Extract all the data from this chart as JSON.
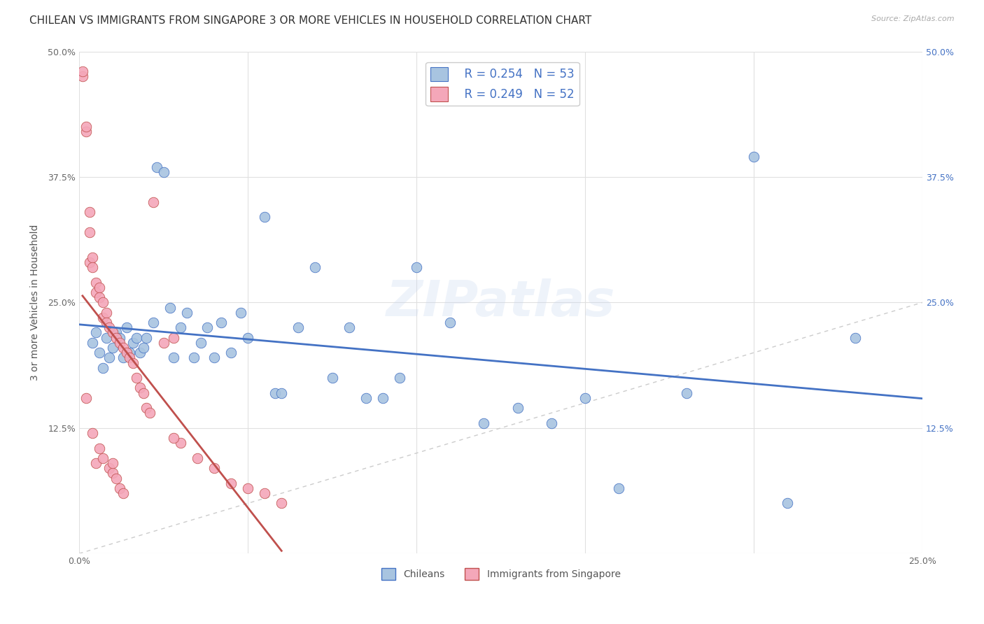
{
  "title": "CHILEAN VS IMMIGRANTS FROM SINGAPORE 3 OR MORE VEHICLES IN HOUSEHOLD CORRELATION CHART",
  "source": "Source: ZipAtlas.com",
  "ylabel": "3 or more Vehicles in Household",
  "xlim": [
    0,
    0.25
  ],
  "ylim": [
    0,
    0.5
  ],
  "xticks": [
    0.0,
    0.05,
    0.1,
    0.15,
    0.2,
    0.25
  ],
  "xticklabels": [
    "0.0%",
    "",
    "",
    "",
    "",
    "25.0%"
  ],
  "yticks": [
    0.0,
    0.125,
    0.25,
    0.375,
    0.5
  ],
  "yticklabels": [
    "",
    "12.5%",
    "25.0%",
    "37.5%",
    "50.0%"
  ],
  "legend_r1": "R = 0.254",
  "legend_n1": "N = 53",
  "legend_r2": "R = 0.249",
  "legend_n2": "N = 52",
  "color_blue": "#a8c4e0",
  "color_pink": "#f4a7b9",
  "trend_blue": "#4472c4",
  "trend_pink": "#c0504d",
  "watermark": "ZIPatlas",
  "blue_x": [
    0.004,
    0.005,
    0.006,
    0.007,
    0.008,
    0.009,
    0.01,
    0.011,
    0.012,
    0.013,
    0.014,
    0.015,
    0.016,
    0.017,
    0.018,
    0.019,
    0.02,
    0.022,
    0.023,
    0.025,
    0.027,
    0.028,
    0.03,
    0.032,
    0.034,
    0.036,
    0.038,
    0.04,
    0.042,
    0.045,
    0.048,
    0.05,
    0.055,
    0.058,
    0.06,
    0.065,
    0.07,
    0.075,
    0.08,
    0.085,
    0.09,
    0.095,
    0.1,
    0.11,
    0.12,
    0.13,
    0.14,
    0.15,
    0.16,
    0.18,
    0.2,
    0.21,
    0.23
  ],
  "blue_y": [
    0.21,
    0.22,
    0.2,
    0.185,
    0.215,
    0.195,
    0.205,
    0.22,
    0.215,
    0.195,
    0.225,
    0.2,
    0.21,
    0.215,
    0.2,
    0.205,
    0.215,
    0.23,
    0.385,
    0.38,
    0.245,
    0.195,
    0.225,
    0.24,
    0.195,
    0.21,
    0.225,
    0.195,
    0.23,
    0.2,
    0.24,
    0.215,
    0.335,
    0.16,
    0.16,
    0.225,
    0.285,
    0.175,
    0.225,
    0.155,
    0.155,
    0.175,
    0.285,
    0.23,
    0.13,
    0.145,
    0.13,
    0.155,
    0.065,
    0.16,
    0.395,
    0.05,
    0.215
  ],
  "pink_x": [
    0.001,
    0.001,
    0.002,
    0.002,
    0.002,
    0.003,
    0.003,
    0.003,
    0.004,
    0.004,
    0.004,
    0.005,
    0.005,
    0.005,
    0.006,
    0.006,
    0.006,
    0.007,
    0.007,
    0.007,
    0.008,
    0.008,
    0.009,
    0.009,
    0.01,
    0.01,
    0.011,
    0.011,
    0.012,
    0.012,
    0.013,
    0.013,
    0.014,
    0.015,
    0.016,
    0.017,
    0.018,
    0.019,
    0.02,
    0.021,
    0.022,
    0.025,
    0.028,
    0.03,
    0.035,
    0.04,
    0.045,
    0.05,
    0.055,
    0.06,
    0.028,
    0.01
  ],
  "pink_y": [
    0.475,
    0.48,
    0.42,
    0.425,
    0.155,
    0.34,
    0.32,
    0.29,
    0.295,
    0.285,
    0.12,
    0.27,
    0.26,
    0.09,
    0.265,
    0.255,
    0.105,
    0.25,
    0.235,
    0.095,
    0.24,
    0.23,
    0.225,
    0.085,
    0.22,
    0.08,
    0.215,
    0.075,
    0.21,
    0.065,
    0.205,
    0.06,
    0.2,
    0.195,
    0.19,
    0.175,
    0.165,
    0.16,
    0.145,
    0.14,
    0.35,
    0.21,
    0.215,
    0.11,
    0.095,
    0.085,
    0.07,
    0.065,
    0.06,
    0.05,
    0.115,
    0.09
  ],
  "grid_color": "#e0e0e0",
  "bg_color": "#ffffff",
  "title_fontsize": 11,
  "axis_label_fontsize": 10,
  "tick_fontsize": 9
}
